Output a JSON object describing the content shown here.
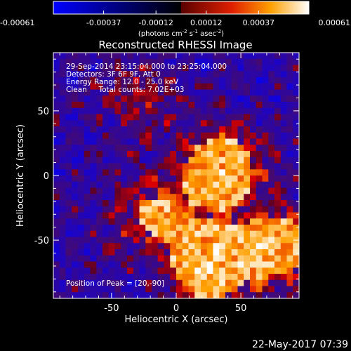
{
  "chart_data": {
    "type": "heatmap",
    "title": "Reconstructed RHESSI Image",
    "xlabel": "Heliocentric X (arcsec)",
    "ylabel": "Heliocentric Y (arcsec)",
    "xlim": [
      -95,
      95
    ],
    "ylim": [
      -95,
      95
    ],
    "x_ticks": [
      "-50",
      "0",
      "50"
    ],
    "y_ticks": [
      "50",
      "0",
      "-50"
    ],
    "x_tick_values": [
      -50,
      0,
      50
    ],
    "y_tick_values": [
      50,
      0,
      -50
    ],
    "colorbar": {
      "colormap": "hot with blue negatives",
      "range": [
        -0.00061,
        0.00061
      ],
      "tick_labels": [
        "-0.00061",
        "-0.00037",
        "-0.00012",
        "0.00012",
        "0.00037",
        "0.00061"
      ],
      "tick_values": [
        -0.00061,
        -0.00037,
        -0.00012,
        0.00012,
        0.00037,
        0.00061
      ],
      "units_prefix": "(photons cm",
      "units_exp1": "-2",
      "units_mid1": " s",
      "units_exp2": "-1",
      "units_mid2": " asec",
      "units_exp3": "-2",
      "units_suffix": ")"
    },
    "info": [
      "29-Sep-2014 23:15:04.000 to 23:25:04.000",
      "Detectors: 3F 6F 9F, Att 0",
      "Energy Range: 12.0 - 25.0 keV",
      "Clean     Total counts: 7.02E+03"
    ],
    "peak_label": "Position of Peak = [20,-90]",
    "peak": [
      20,
      -90
    ],
    "grid": false,
    "emission_sources": [
      {
        "x": 35,
        "y": 5,
        "peak": 1.0
      },
      {
        "x": 25,
        "y": -70,
        "peak": 1.0
      },
      {
        "x": 80,
        "y": -55,
        "peak": 0.85
      },
      {
        "x": -20,
        "y": -30,
        "peak": 0.6
      },
      {
        "x": -30,
        "y": 60,
        "peak": 0.4
      }
    ]
  },
  "footer": {
    "timestamp": "22-May-2017 07:39"
  }
}
